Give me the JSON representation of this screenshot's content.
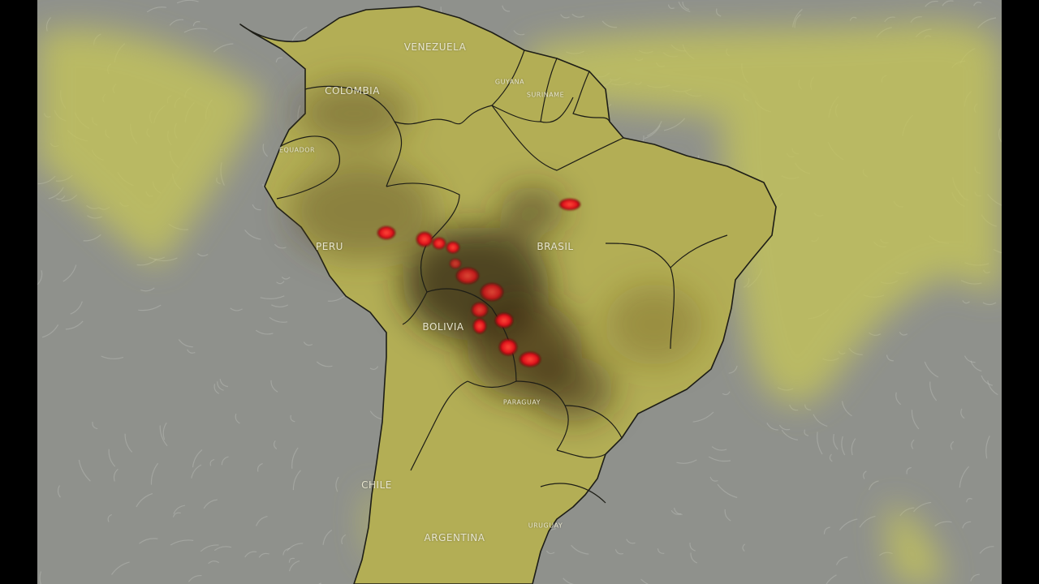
{
  "map": {
    "countries": [
      {
        "key": "venezuela",
        "label": "VENEZUELA",
        "size": "big"
      },
      {
        "key": "colombia",
        "label": "COLOMBIA",
        "size": "big"
      },
      {
        "key": "guyana",
        "label": "GUYANA",
        "size": "small"
      },
      {
        "key": "suriname",
        "label": "SURINAME",
        "size": "small"
      },
      {
        "key": "ecuador",
        "label": "EQUADOR",
        "size": "small"
      },
      {
        "key": "peru",
        "label": "PERU",
        "size": "big"
      },
      {
        "key": "brasil",
        "label": "BRASIL",
        "size": "big"
      },
      {
        "key": "bolivia",
        "label": "BOLIVIA",
        "size": "big"
      },
      {
        "key": "paraguay",
        "label": "PARAGUAY",
        "size": "small"
      },
      {
        "key": "chile",
        "label": "CHILE",
        "size": "big"
      },
      {
        "key": "argentina",
        "label": "ARGENTINA",
        "size": "big"
      },
      {
        "key": "uruguay",
        "label": "URUGUAY",
        "size": "small"
      }
    ],
    "colors": {
      "ocean": "#8f918c",
      "land": "#b7b25a",
      "aerosol_plume": "#c7c75a",
      "smoke": "#3b2a12",
      "fire_hotspot": "#ff1a1a",
      "border": "#1d1d16"
    },
    "layers": [
      "wind-streamlines",
      "aerosol-plume",
      "smoke-density",
      "fire-hotspots",
      "country-borders"
    ]
  }
}
